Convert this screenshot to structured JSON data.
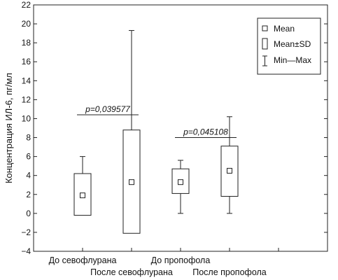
{
  "chart_data": {
    "type": "box",
    "ylabel": "Концентрация ИЛ-6, пг/мл",
    "ylim": [
      -4,
      22
    ],
    "yticks": [
      -4,
      -2,
      0,
      2,
      4,
      6,
      8,
      10,
      12,
      14,
      16,
      18,
      20,
      22
    ],
    "grid": false,
    "legend": {
      "placement": "top-right",
      "mean": "Mean",
      "sd": "Mean±SD",
      "range": "Min—Max"
    },
    "groups": [
      {
        "label": "До севофлурана",
        "mean": 1.9,
        "mean_minus_sd": -0.2,
        "mean_plus_sd": 4.2,
        "min": -0.2,
        "max": 6.0
      },
      {
        "label": "После севофлурана",
        "mean": 3.3,
        "mean_minus_sd": -2.1,
        "mean_plus_sd": 8.8,
        "min": -2.1,
        "max": 19.3
      },
      {
        "label": "До пропофола",
        "mean": 3.3,
        "mean_minus_sd": 2.1,
        "mean_plus_sd": 4.7,
        "min": 0.0,
        "max": 5.6
      },
      {
        "label": "После пропофола",
        "mean": 4.5,
        "mean_minus_sd": 1.8,
        "mean_plus_sd": 7.1,
        "min": 0.0,
        "max": 10.2
      }
    ],
    "annotations": [
      {
        "text": "p=0,039577",
        "from": 0,
        "to": 1,
        "y": 10.4
      },
      {
        "text": "p=0,045108",
        "from": 2,
        "to": 3,
        "y": 8.0
      }
    ]
  }
}
